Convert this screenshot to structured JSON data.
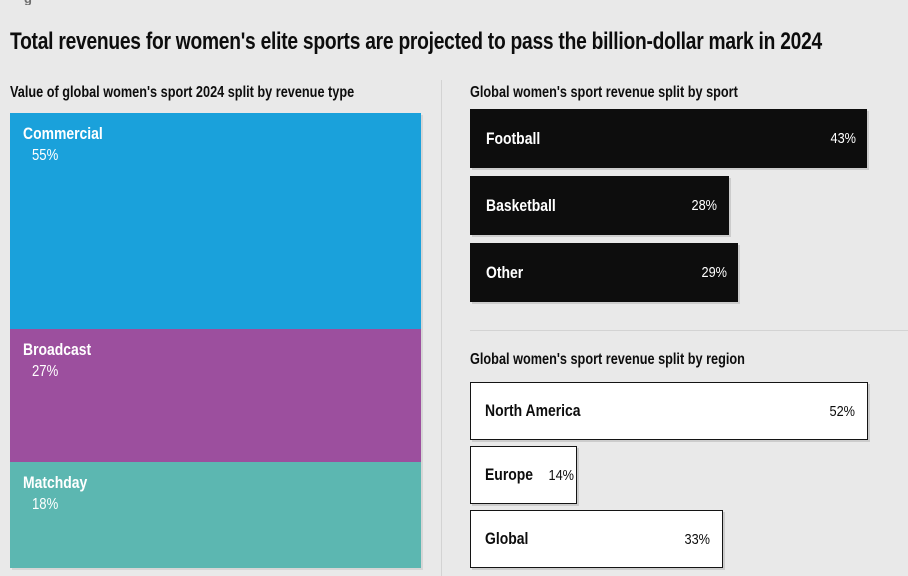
{
  "page": {
    "background": "#e9e9e9",
    "clipped_kicker_fragment": "g",
    "title": "Total revenues for women's elite sports are projected to pass the billion-dollar mark in 2024",
    "divider_color": "#d3d3d3"
  },
  "chart_data": [
    {
      "type": "bar",
      "subtype": "stacked-vertical-100percent",
      "title": "Value of global women's sport 2024 split by revenue type",
      "categories": [
        "Commercial",
        "Broadcast",
        "Matchday"
      ],
      "values": [
        55,
        27,
        18
      ],
      "display_values": [
        "55%",
        "27%",
        "18%"
      ],
      "unit": "percent",
      "colors": [
        "#1aa1db",
        "#9c4f9e",
        "#5cb7b1"
      ],
      "label_color": "#ffffff",
      "legend": "none",
      "grid": false
    },
    {
      "type": "bar",
      "orientation": "horizontal",
      "title": "Global women's sport revenue split by sport",
      "categories": [
        "Football",
        "Basketball",
        "Other"
      ],
      "values": [
        43,
        28,
        29
      ],
      "display_values": [
        "43%",
        "28%",
        "29%"
      ],
      "unit": "percent",
      "bar_fill": "#0d0d0d",
      "bar_border": "none",
      "label_color": "#ffffff",
      "xlim": [
        0,
        43
      ],
      "legend": "none",
      "grid": false
    },
    {
      "type": "bar",
      "orientation": "horizontal",
      "title": "Global women's sport revenue split by region",
      "categories": [
        "North America",
        "Europe",
        "Global"
      ],
      "values": [
        52,
        14,
        33
      ],
      "display_values": [
        "52%",
        "14%",
        "33%"
      ],
      "unit": "percent",
      "bar_fill": "#ffffff",
      "bar_border": "#141414",
      "label_color": "#0d0d0d",
      "xlim": [
        0,
        52
      ],
      "legend": "none",
      "grid": false
    }
  ]
}
